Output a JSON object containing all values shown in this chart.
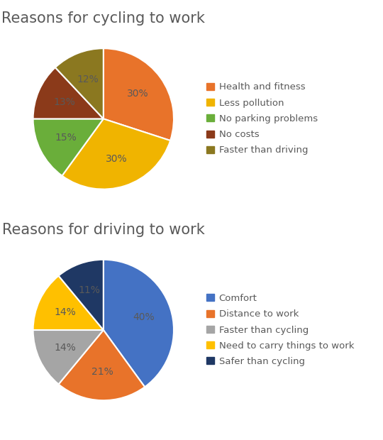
{
  "chart1": {
    "title": "Reasons for cycling to work",
    "labels": [
      "Health and fitness",
      "Less pollution",
      "No parking problems",
      "No costs",
      "Faster than driving"
    ],
    "values": [
      30,
      30,
      15,
      13,
      12
    ],
    "colors": [
      "#E8732A",
      "#F0B400",
      "#6AAE3A",
      "#8B3A1A",
      "#8B7820"
    ],
    "pct_labels": [
      "30%",
      "30%",
      "15%",
      "13%",
      "12%"
    ],
    "startangle": 90
  },
  "chart2": {
    "title": "Reasons for driving to work",
    "labels": [
      "Comfort",
      "Distance to work",
      "Faster than cycling",
      "Need to carry things to work",
      "Safer than cycling"
    ],
    "values": [
      40,
      21,
      14,
      14,
      11
    ],
    "colors": [
      "#4472C4",
      "#E8732A",
      "#A5A5A5",
      "#FFC000",
      "#1F3864"
    ],
    "pct_labels": [
      "40%",
      "21%",
      "14%",
      "14%",
      "11%"
    ],
    "startangle": 90
  },
  "title_fontsize": 15,
  "label_fontsize": 10,
  "legend_fontsize": 9.5,
  "title_color": "#595959",
  "label_color": "#595959",
  "legend_color": "#595959"
}
